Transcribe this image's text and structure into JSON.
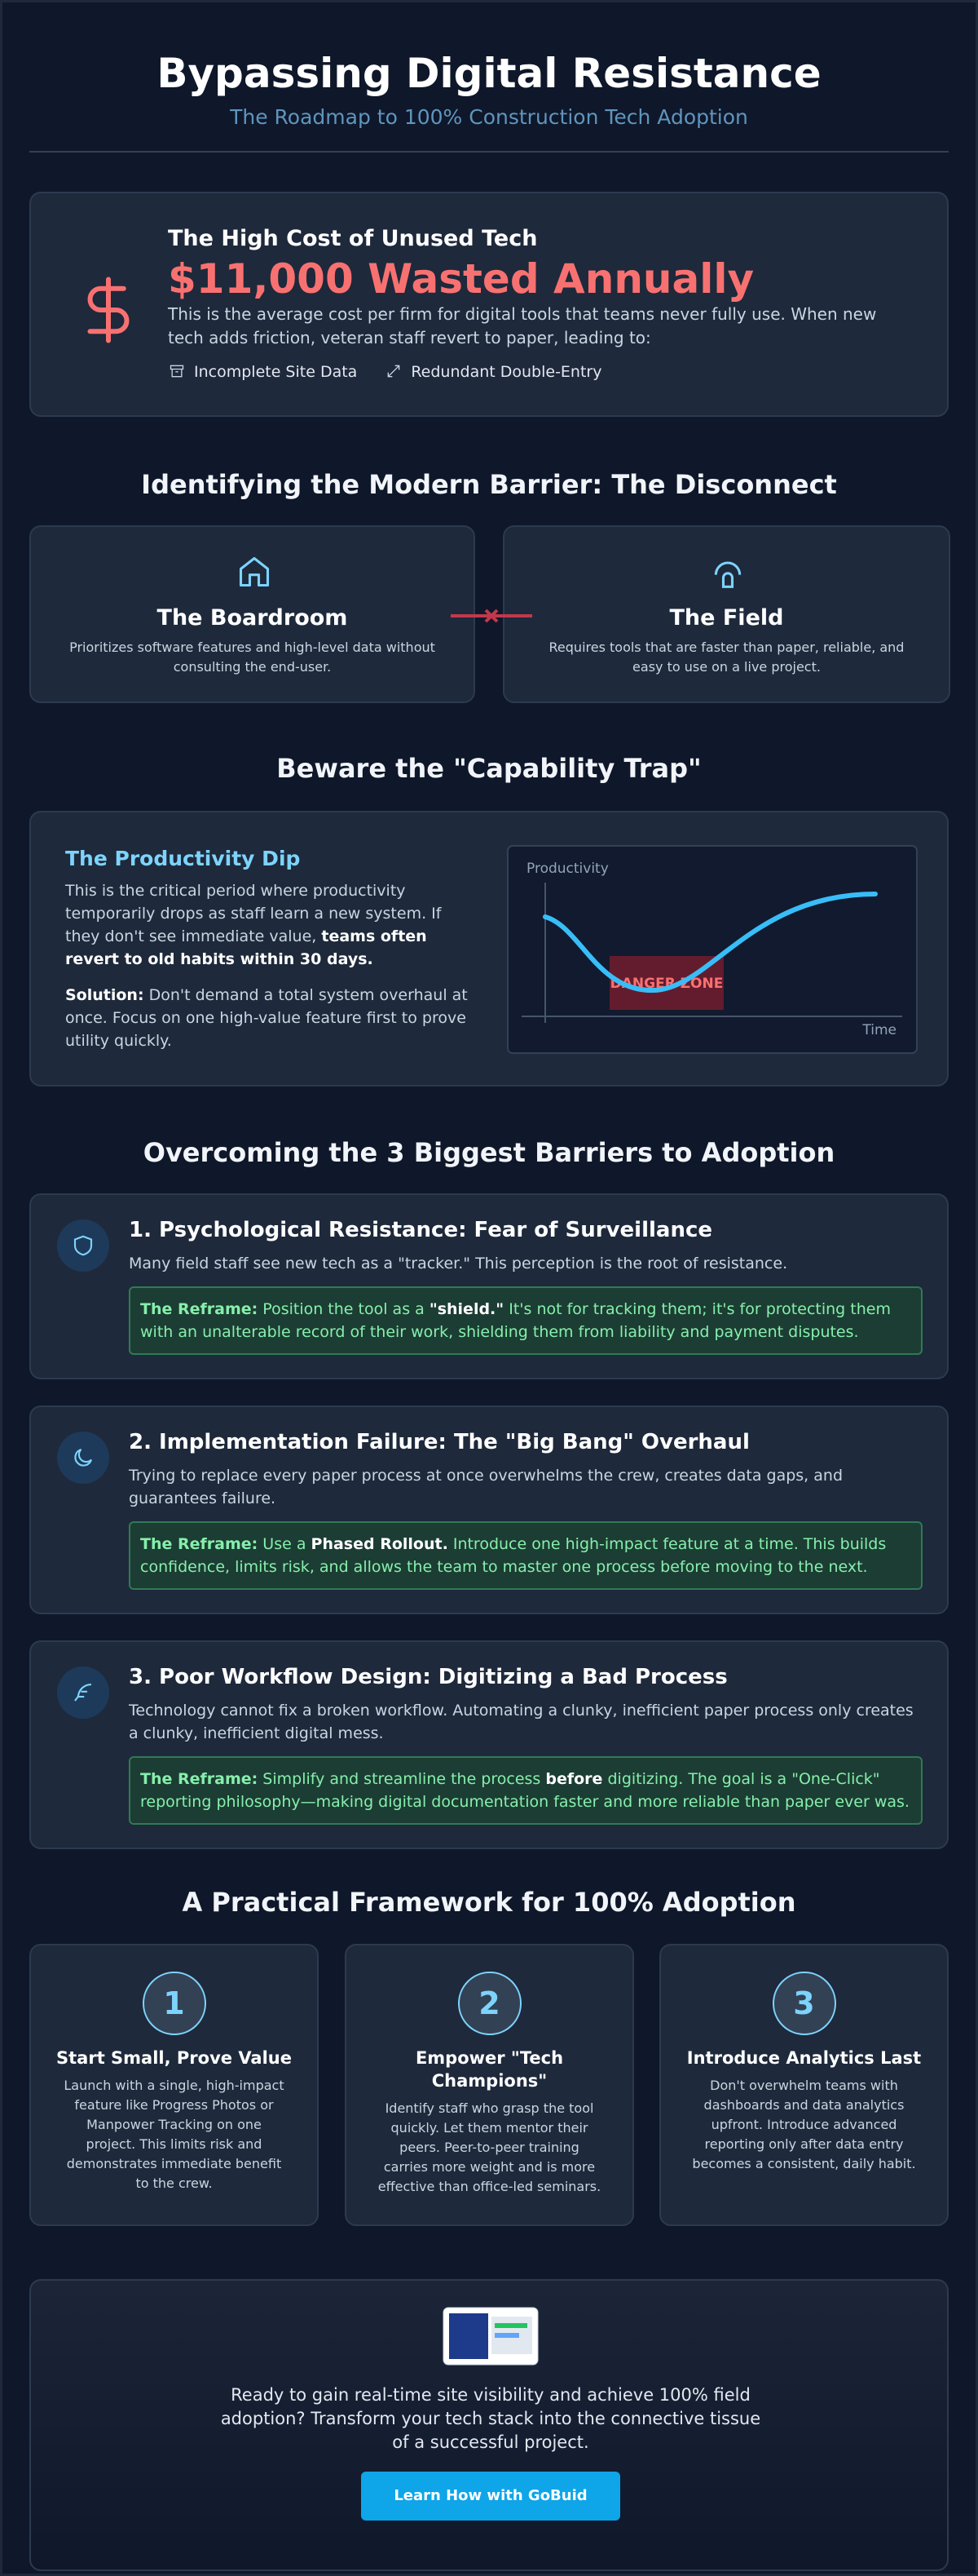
{
  "header": {
    "title": "Bypassing Digital Resistance",
    "subtitle": "The Roadmap to 100% Construction Tech Adoption"
  },
  "cost": {
    "heading": "The High Cost of Unused Tech",
    "amount": "$11,000 Wasted Annually",
    "text": "This is the average cost per firm for digital tools that teams never fully use. When new tech adds friction, veteran staff revert to paper, leading to:",
    "items": [
      "Incomplete Site Data",
      "Redundant Double-Entry"
    ]
  },
  "disconnect": {
    "heading": "Identifying the Modern Barrier: The Disconnect",
    "cards": [
      {
        "title": "The Boardroom",
        "text": "Prioritizes software features and high-level data without consulting the end-user."
      },
      {
        "title": "The Field",
        "text": "Requires tools that are faster than paper, reliable, and easy to use on a live project."
      }
    ]
  },
  "trap": {
    "heading": "Beware the \"Capability Trap\"",
    "subheading": "The Productivity Dip",
    "paragraph": [
      "This is the critical period where productivity temporarily drops as staff learn a new system. If they don't see immediate value, ",
      "teams often revert to old habits within 30 days."
    ],
    "solution": [
      "Solution:",
      " Don't demand a total system overhaul at once. Focus on one high-value feature first to prove utility quickly."
    ],
    "chart": {
      "y_label": "Productivity",
      "x_label": "Time",
      "zone_label": "DANGER ZONE"
    }
  },
  "barriers": {
    "heading": "Overcoming the 3 Biggest Barriers to Adoption",
    "items": [
      {
        "title": "1. Psychological Resistance: Fear of Surveillance",
        "text": "Many field staff see new tech as a \"tracker.\" This perception is the root of resistance.",
        "reframe": [
          "The Reframe:",
          " Position the tool as a ",
          "\"shield.\"",
          " It's not for tracking them; it's for protecting them with an unalterable record of their work, shielding them from liability and payment disputes."
        ]
      },
      {
        "title": "2. Implementation Failure: The \"Big Bang\" Overhaul",
        "text": "Trying to replace every paper process at once overwhelms the crew, creates data gaps, and guarantees failure.",
        "reframe": [
          "The Reframe:",
          " Use a ",
          "Phased Rollout.",
          " Introduce one high-impact feature at a time. This builds confidence, limits risk, and allows the team to master one process before moving to the next."
        ]
      },
      {
        "title": "3. Poor Workflow Design: Digitizing a Bad Process",
        "text": "Technology cannot fix a broken workflow. Automating a clunky, inefficient paper process only creates a clunky, inefficient digital mess.",
        "reframe": [
          "The Reframe:",
          " Simplify and streamline the process ",
          "before",
          " digitizing. The goal is a \"One-Click\" reporting philosophy—making digital documentation faster and more reliable than paper ever was."
        ]
      }
    ]
  },
  "framework": {
    "heading": "A Practical Framework for 100% Adoption",
    "steps": [
      {
        "number": 1,
        "title": "Start Small, Prove Value",
        "text": "Launch with a single, high-impact feature like Progress Photos or Manpower Tracking on one project. This limits risk and demonstrates immediate benefit to the crew."
      },
      {
        "number": 2,
        "title": "Empower \"Tech Champions\"",
        "text": "Identify staff who grasp the tool quickly. Let them mentor their peers. Peer-to-peer training carries more weight and is more effective than office-led seminars."
      },
      {
        "number": 3,
        "title": "Introduce Analytics Last",
        "text": "Don't overwhelm teams with dashboards and data analytics upfront. Introduce advanced reporting only after data entry becomes a consistent, daily habit."
      }
    ]
  },
  "cta": {
    "text": "Ready to gain real-time site visibility and achieve 100% field adoption? Transform your tech stack into the connective tissue of a successful project.",
    "button": "Learn How with GoBuid"
  }
}
